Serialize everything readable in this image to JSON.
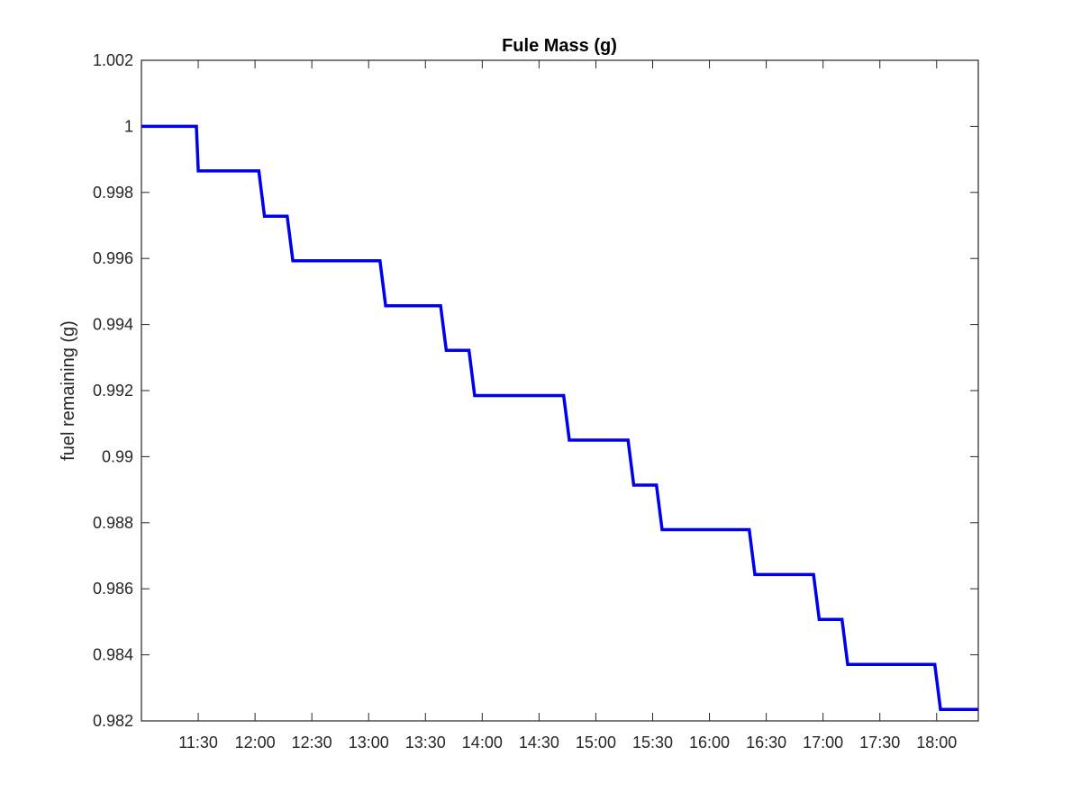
{
  "chart_data": {
    "type": "line",
    "title": "Fule Mass (g)",
    "xlabel": "",
    "ylabel": "fuel remaining (g)",
    "xlim": [
      "11:00",
      "18:22"
    ],
    "ylim": [
      0.982,
      1.002
    ],
    "grid": false,
    "x_ticks": [
      "11:30",
      "12:00",
      "12:30",
      "13:00",
      "13:30",
      "14:00",
      "14:30",
      "15:00",
      "15:30",
      "16:00",
      "16:30",
      "17:00",
      "17:30",
      "18:00"
    ],
    "y_ticks": [
      "0.982",
      "0.984",
      "0.986",
      "0.988",
      "0.99",
      "0.992",
      "0.994",
      "0.996",
      "0.998",
      "1",
      "1.002"
    ],
    "series": [
      {
        "color": "#0000ee",
        "x": [
          "11:00",
          "11:29",
          "11:30",
          "12:02",
          "12:05",
          "12:17",
          "12:20",
          "13:06",
          "13:09",
          "13:38",
          "13:41",
          "13:53",
          "13:56",
          "14:43",
          "14:46",
          "15:17",
          "15:20",
          "15:32",
          "15:35",
          "16:21",
          "16:24",
          "16:55",
          "16:58",
          "17:10",
          "17:13",
          "17:59",
          "18:02",
          "18:22"
        ],
        "y": [
          1.0,
          1.0,
          0.99865,
          0.99865,
          0.99728,
          0.99728,
          0.99593,
          0.99593,
          0.99457,
          0.99457,
          0.99322,
          0.99322,
          0.99185,
          0.99185,
          0.9905,
          0.9905,
          0.98914,
          0.98914,
          0.98779,
          0.98779,
          0.98643,
          0.98643,
          0.98507,
          0.98507,
          0.98371,
          0.98371,
          0.98235,
          0.98235
        ]
      }
    ]
  }
}
